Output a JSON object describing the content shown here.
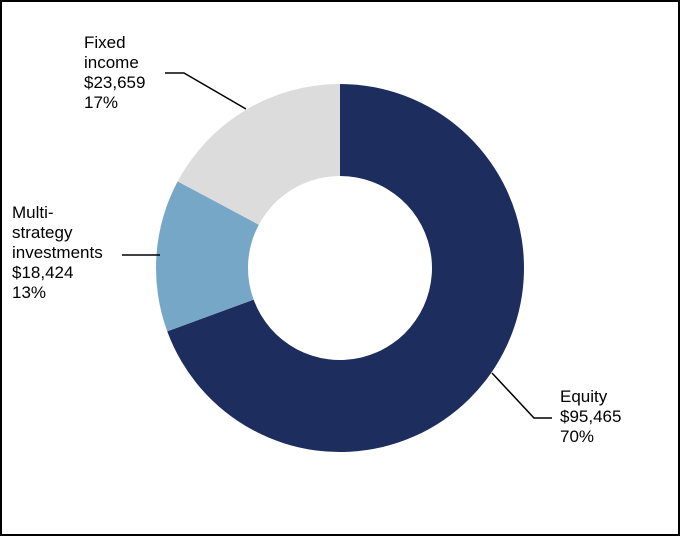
{
  "chart_data": {
    "type": "pie",
    "style": "donut",
    "title": "",
    "slices": [
      {
        "name_lines": [
          "Equity"
        ],
        "value_label": "$95,465",
        "percent_label": "70%",
        "value": 95465,
        "color": "#1c2d5e"
      },
      {
        "name_lines": [
          "Multi-",
          "strategy",
          "investments"
        ],
        "value_label": "$18,424",
        "percent_label": "13%",
        "value": 18424,
        "color": "#76a7c7"
      },
      {
        "name_lines": [
          "Fixed",
          "income"
        ],
        "value_label": "$23,659",
        "percent_label": "17%",
        "value": 23659,
        "color": "#dcdcdc"
      }
    ],
    "legend": "none"
  }
}
